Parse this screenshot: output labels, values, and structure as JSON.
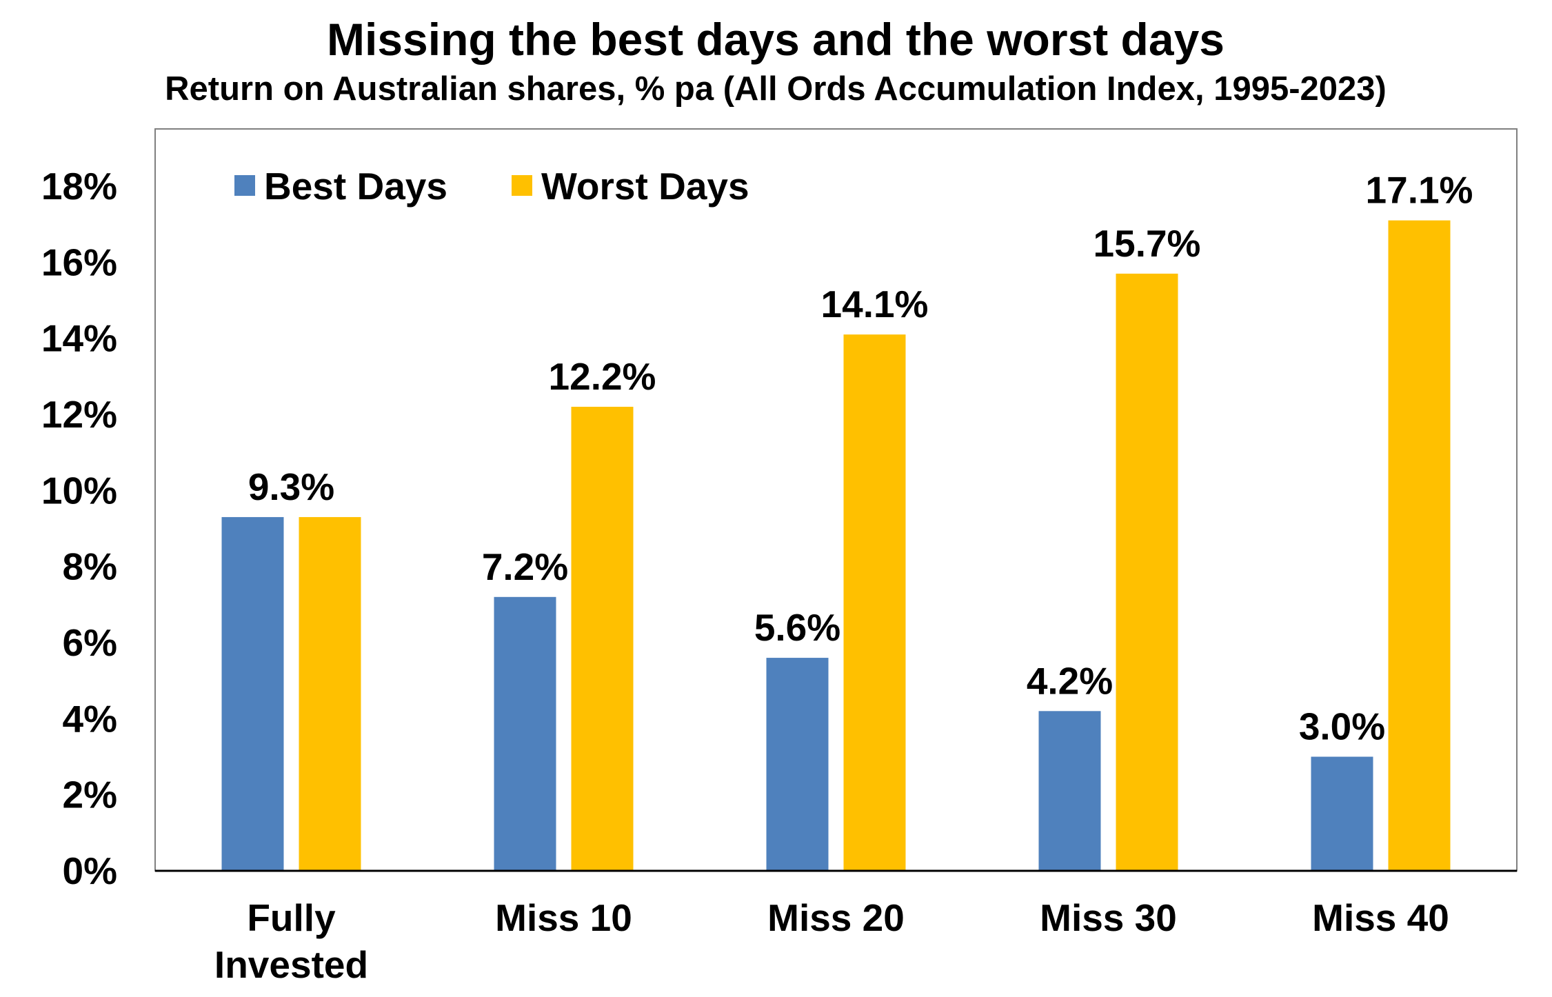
{
  "chart_data": {
    "type": "bar",
    "title": "Missing the best days and the worst days",
    "subtitle": "Return on Australian shares, % pa (All Ords Accumulation Index, 1995-2023)",
    "categories": [
      [
        "Fully",
        "Invested"
      ],
      [
        "Miss 10"
      ],
      [
        "Miss 20"
      ],
      [
        "Miss 30"
      ],
      [
        "Miss 40"
      ]
    ],
    "series": [
      {
        "name": "Best Days",
        "color": "#4F81BD",
        "values": [
          9.3,
          7.2,
          5.6,
          4.2,
          3.0
        ],
        "labels": [
          "",
          "7.2%",
          "5.6%",
          "4.2%",
          "3.0%"
        ]
      },
      {
        "name": "Worst Days",
        "color": "#FFC000",
        "values": [
          9.3,
          12.2,
          14.1,
          15.7,
          17.1
        ],
        "labels": [
          "",
          "12.2%",
          "14.1%",
          "15.7%",
          "17.1%"
        ]
      }
    ],
    "group_labels": [
      "9.3%",
      "",
      "",
      "",
      ""
    ],
    "yticks": [
      "0%",
      "2%",
      "4%",
      "6%",
      "8%",
      "10%",
      "12%",
      "14%",
      "16%",
      "18%"
    ],
    "ylim": [
      0,
      19.5
    ],
    "legend_position": "top-left",
    "grid": false
  }
}
